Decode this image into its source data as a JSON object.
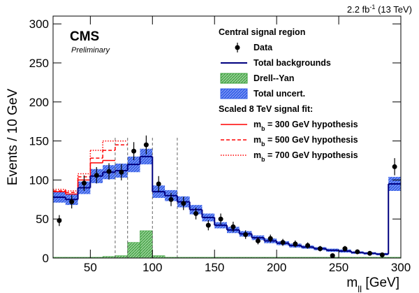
{
  "chart_data": {
    "type": "histogram",
    "experiment": "CMS",
    "status": "Preliminary",
    "lumi": [
      {
        "text": "2.2 fb"
      },
      {
        "text": "-1",
        "sup": true
      },
      {
        "text": " (13 TeV)"
      }
    ],
    "xlabel": [
      {
        "text": "m"
      },
      {
        "text": "ll",
        "sub": true
      },
      {
        "text": " [GeV]"
      }
    ],
    "ylabel": "Events / 10 GeV",
    "bins": [
      20,
      30,
      40,
      50,
      60,
      70,
      80,
      90,
      100,
      110,
      120,
      130,
      140,
      150,
      160,
      170,
      180,
      190,
      200,
      210,
      220,
      230,
      240,
      250,
      260,
      270,
      280,
      290,
      300
    ],
    "xlim": [
      20,
      300
    ],
    "ylim": [
      0,
      310
    ],
    "xticks": [
      50,
      100,
      150,
      200,
      250,
      300
    ],
    "yticks": [
      0,
      50,
      100,
      150,
      200,
      250,
      300
    ],
    "legend_title": "Central signal region",
    "legend_heading": "Scaled 8 TeV signal fit:",
    "data": {
      "name": "Data",
      "color": "#000000",
      "values": [
        48,
        72,
        96,
        106,
        111,
        110,
        137,
        145,
        95,
        75,
        70,
        57,
        42,
        50,
        40,
        30,
        22,
        25,
        20,
        18,
        16,
        12,
        3,
        12,
        8,
        6,
        4,
        117
      ],
      "errors": [
        7,
        8.5,
        10,
        10.5,
        10.5,
        10.5,
        11.5,
        12,
        10,
        8.5,
        8.5,
        7.5,
        6.5,
        7,
        6.5,
        5.5,
        4.5,
        5,
        4.5,
        4.5,
        4,
        3.5,
        2,
        3.5,
        3,
        2.5,
        2,
        11
      ]
    },
    "background": {
      "name": "Total backgrounds",
      "color": "#00007f",
      "values": [
        78,
        75,
        90,
        105,
        110,
        112,
        120,
        130,
        85,
        80,
        72,
        62,
        52,
        42,
        36,
        31,
        26,
        22,
        19,
        16,
        14,
        12,
        10,
        9,
        7,
        6,
        5,
        95
      ],
      "uncertainty": [
        7,
        7,
        8,
        9,
        9,
        9,
        10,
        10,
        8,
        7,
        7,
        6,
        5,
        4,
        4,
        3.5,
        3,
        3,
        2.5,
        2.5,
        2,
        2,
        2,
        2,
        1.5,
        1.5,
        1.5,
        9
      ],
      "uncertainty_name": "Total uncert.",
      "uncertainty_color": "#3a62e6"
    },
    "drell_yan": {
      "name": "Drell--Yan",
      "color": "#3aa03a",
      "values": [
        1,
        1,
        1,
        1,
        2,
        3,
        20,
        35,
        3,
        1,
        1,
        1,
        1,
        1,
        1,
        1,
        1,
        1,
        1,
        1,
        1,
        1,
        1,
        1,
        1,
        1,
        1,
        1
      ]
    },
    "signals": [
      {
        "name": [
          {
            "text": "m"
          },
          {
            "text": "b",
            "sub": true
          },
          {
            "text": " = 300 GeV hypothesis"
          }
        ],
        "color": "#ff0000",
        "dash": "solid",
        "values": [
          85,
          82,
          100,
          122,
          125,
          null,
          null,
          null,
          null,
          null,
          null,
          null,
          null,
          null,
          null,
          null,
          null,
          null,
          null,
          null,
          null,
          null,
          null,
          null,
          null,
          null,
          null,
          null
        ]
      },
      {
        "name": [
          {
            "text": "m"
          },
          {
            "text": "b",
            "sub": true
          },
          {
            "text": " = 500 GeV hypothesis"
          }
        ],
        "color": "#ff0000",
        "dash": "dashed",
        "values": [
          86,
          84,
          104,
          128,
          138,
          145,
          null,
          null,
          null,
          null,
          null,
          null,
          null,
          null,
          null,
          null,
          null,
          null,
          null,
          null,
          null,
          null,
          null,
          null,
          null,
          null,
          null,
          null
        ]
      },
      {
        "name": [
          {
            "text": "m"
          },
          {
            "text": "b",
            "sub": true
          },
          {
            "text": " = 700 GeV hypothesis"
          }
        ],
        "color": "#ff0000",
        "dash": "dotted",
        "values": [
          88,
          86,
          108,
          138,
          150,
          150,
          null,
          null,
          null,
          null,
          null,
          null,
          null,
          null,
          null,
          null,
          null,
          null,
          null,
          null,
          null,
          null,
          null,
          null,
          null,
          null,
          null,
          null
        ]
      }
    ],
    "signal_region_edges": [
      70,
      80,
      100,
      120
    ]
  }
}
